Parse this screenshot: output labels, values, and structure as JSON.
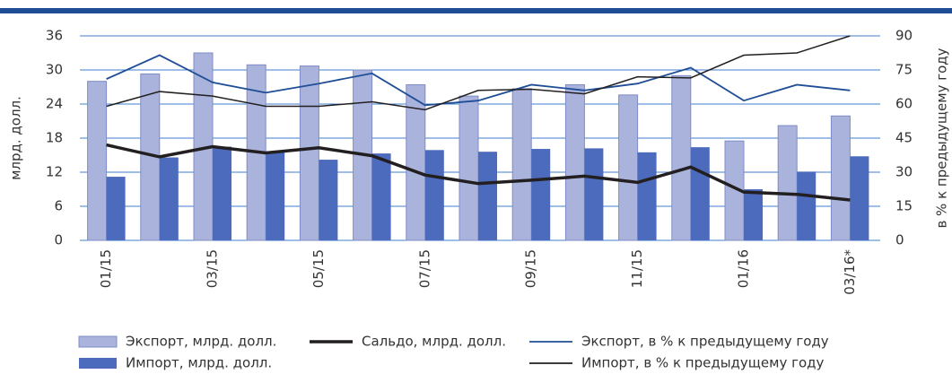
{
  "chart_data": {
    "type": "bar",
    "categories": [
      "01/15",
      null,
      "03/15",
      null,
      "05/15",
      null,
      "07/15",
      null,
      "09/15",
      null,
      "11/15",
      null,
      "01/16",
      null,
      "03/16*"
    ],
    "y_label": "млрд. долл.",
    "y2_label": "в % к предыдущему году",
    "ylim": [
      0,
      36
    ],
    "yticks": [
      0,
      6,
      12,
      18,
      24,
      30,
      36
    ],
    "y2lim": [
      0,
      90
    ],
    "y2ticks": [
      0,
      15,
      30,
      45,
      60,
      75,
      90
    ],
    "grid": true,
    "series": [
      {
        "name": "Экспорт, млрд. долл.",
        "type": "bar",
        "color": "#a9b3dc",
        "values": [
          28,
          29.3,
          33,
          30.9,
          30.7,
          30,
          27.4,
          25.4,
          26.7,
          27.4,
          25.6,
          29,
          17.5,
          20.2,
          21.9
        ]
      },
      {
        "name": "Импорт, млрд. долл.",
        "type": "bar",
        "color": "#4d6bbd",
        "values": [
          11.2,
          14.6,
          16.5,
          15.5,
          14.2,
          15.3,
          15.9,
          15.6,
          16.1,
          16.2,
          15.5,
          16.4,
          9,
          12.1,
          14.8
        ]
      },
      {
        "name": "Сальдо, млрд. долл.",
        "type": "line",
        "color": "#231f20",
        "values": [
          16.8,
          14.7,
          16.5,
          15.4,
          16.3,
          14.9,
          11.5,
          10,
          10.6,
          11.3,
          10.2,
          12.9,
          8.5,
          8.1,
          7.1
        ]
      },
      {
        "name": "Экспорт, в % к предыдущему году",
        "type": "line",
        "axis": "y2",
        "color": "#1f4e96",
        "values": [
          71,
          81.5,
          69.5,
          65,
          69,
          73.5,
          59.5,
          61.5,
          68.5,
          66,
          69,
          76,
          61.5,
          68.5,
          66
        ]
      },
      {
        "name": "Импорт, в % к предыдущему году",
        "type": "line",
        "axis": "y2",
        "color": "#231f20",
        "values": [
          59,
          65.5,
          63.5,
          59,
          59,
          61,
          57.5,
          66,
          66.5,
          64.5,
          72,
          71.5,
          81.5,
          82.5,
          90
        ]
      }
    ]
  }
}
